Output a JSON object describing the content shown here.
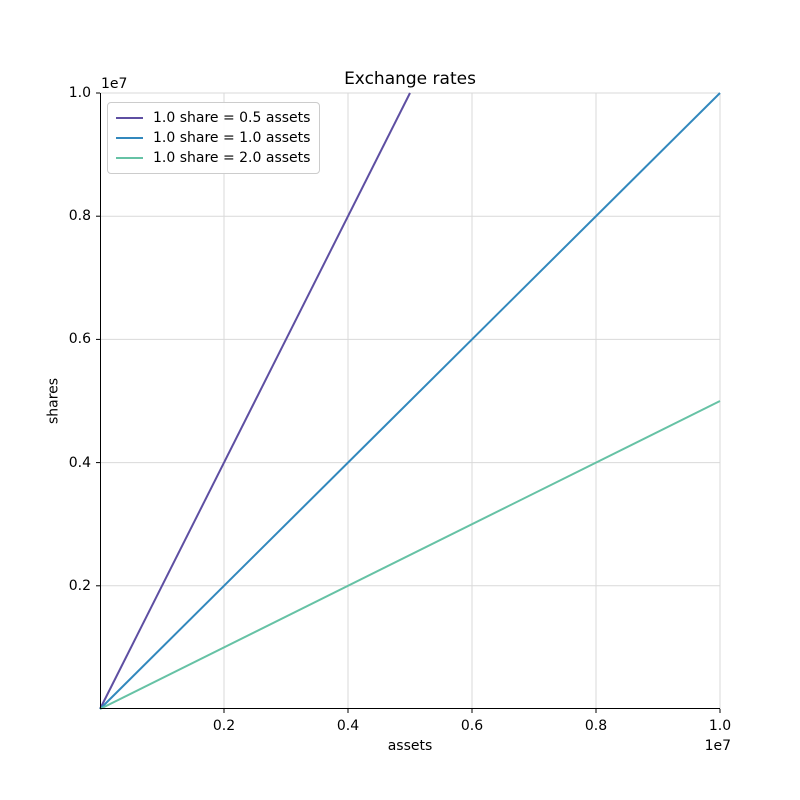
{
  "figure": {
    "background": "#ffffff"
  },
  "chart_data": {
    "type": "line",
    "title": "Exchange rates",
    "xlabel": "assets",
    "ylabel": "shares",
    "x_offset_text": "1e7",
    "y_offset_text": "1e7",
    "xlim": [
      0,
      10000000
    ],
    "ylim": [
      0,
      10000000
    ],
    "x_tick_values": [
      2000000,
      4000000,
      6000000,
      8000000,
      10000000
    ],
    "x_tick_labels": [
      "0.2",
      "0.4",
      "0.6",
      "0.8",
      "1.0"
    ],
    "y_tick_values": [
      2000000,
      4000000,
      6000000,
      8000000,
      10000000
    ],
    "y_tick_labels": [
      "0.2",
      "0.4",
      "0.6",
      "0.8",
      "1.0"
    ],
    "grid": true,
    "grid_color": "#d9d9d9",
    "spine_color": "#000000",
    "line_width": 2,
    "legend_position": "upper-left",
    "series": [
      {
        "name": "1.0 share = 0.5 assets",
        "color": "#5e4fa2",
        "slope_shares_per_asset": 2.0,
        "points": [
          [
            0,
            0
          ],
          [
            5000000,
            10000000
          ]
        ]
      },
      {
        "name": "1.0 share = 1.0 assets",
        "color": "#3288bd",
        "slope_shares_per_asset": 1.0,
        "points": [
          [
            0,
            0
          ],
          [
            10000000,
            10000000
          ]
        ]
      },
      {
        "name": "1.0 share = 2.0 assets",
        "color": "#66c2a5",
        "slope_shares_per_asset": 0.5,
        "points": [
          [
            0,
            0
          ],
          [
            10000000,
            5000000
          ]
        ]
      }
    ]
  }
}
